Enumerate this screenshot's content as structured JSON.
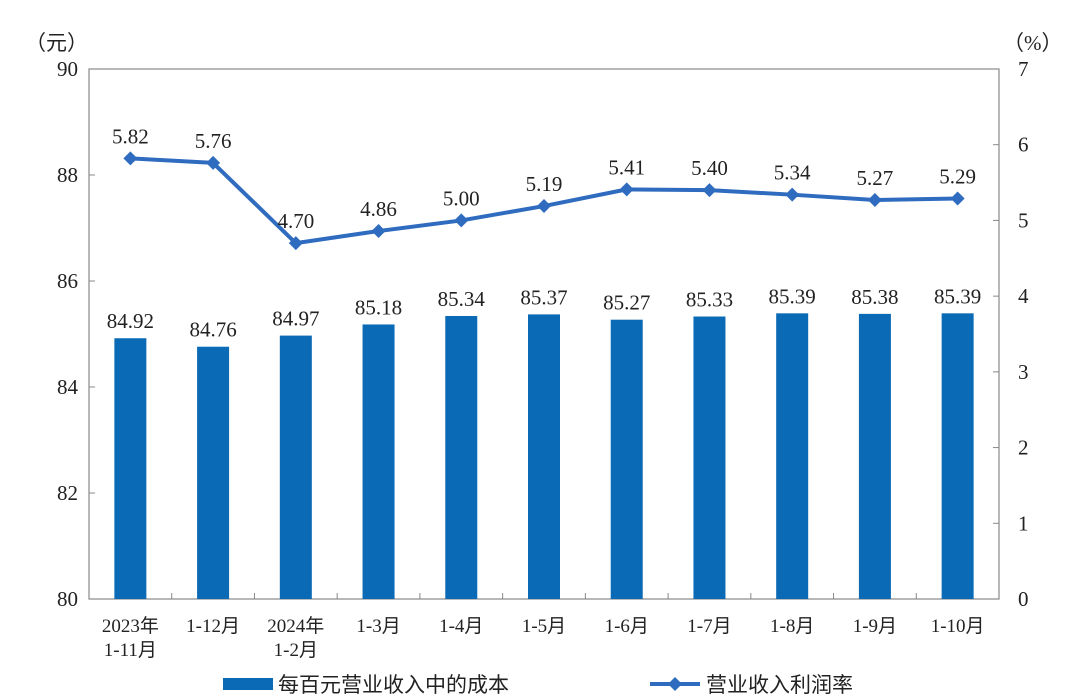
{
  "colors": {
    "bar": "#0a6ab5",
    "line": "#2f6cbf",
    "axis": "#888888"
  },
  "chart_data": {
    "type": "bar+line",
    "categories": [
      [
        "2023年",
        "1-11月"
      ],
      [
        "1-12月"
      ],
      [
        "2024年",
        "1-2月"
      ],
      [
        "1-3月"
      ],
      [
        "1-4月"
      ],
      [
        "1-5月"
      ],
      [
        "1-6月"
      ],
      [
        "1-7月"
      ],
      [
        "1-8月"
      ],
      [
        "1-9月"
      ],
      [
        "1-10月"
      ]
    ],
    "series": [
      {
        "name": "每百元营业收入中的成本",
        "type": "bar",
        "axis": "left",
        "values": [
          84.92,
          84.76,
          84.97,
          85.18,
          85.34,
          85.37,
          85.27,
          85.33,
          85.39,
          85.38,
          85.39
        ],
        "labels": [
          "84.92",
          "84.76",
          "84.97",
          "85.18",
          "85.34",
          "85.37",
          "85.27",
          "85.33",
          "85.39",
          "85.38",
          "85.39"
        ]
      },
      {
        "name": "营业收入利润率",
        "type": "line",
        "axis": "right",
        "values": [
          5.82,
          5.76,
          4.7,
          4.86,
          5.0,
          5.19,
          5.41,
          5.4,
          5.34,
          5.27,
          5.29
        ],
        "labels": [
          "5.82",
          "5.76",
          "4.70",
          "4.86",
          "5.00",
          "5.19",
          "5.41",
          "5.40",
          "5.34",
          "5.27",
          "5.29"
        ]
      }
    ],
    "left_axis": {
      "unit": "（元）",
      "ylim": [
        80,
        90
      ],
      "ticks": [
        "80",
        "82",
        "84",
        "86",
        "88",
        "90"
      ]
    },
    "right_axis": {
      "unit": "（%）",
      "ylim": [
        0,
        7
      ],
      "ticks": [
        "0",
        "1",
        "2",
        "3",
        "4",
        "5",
        "6",
        "7"
      ]
    },
    "legend": {
      "placement": "bottom"
    },
    "grid": false
  }
}
